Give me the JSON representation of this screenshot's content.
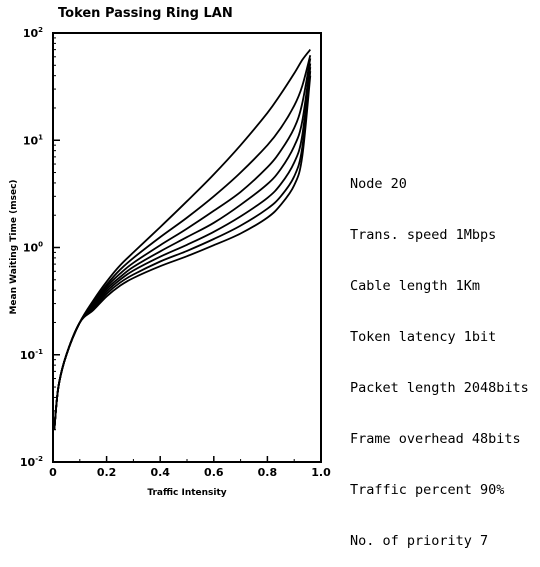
{
  "chart_data": {
    "type": "line",
    "title": "Token Passing Ring LAN",
    "xlabel": "Traffic Intensity",
    "ylabel": "Mean Waiting Time (msec)",
    "xlim": [
      0,
      1.0
    ],
    "ylim_log10": [
      -2,
      2
    ],
    "y_scale": "log",
    "x_ticks": [
      "0",
      "0.2",
      "0.4",
      "0.6",
      "0.8",
      "1.0"
    ],
    "y_ticks": [
      {
        "base": "10",
        "exp": "-2"
      },
      {
        "base": "10",
        "exp": "-1"
      },
      {
        "base": "10",
        "exp": "0"
      },
      {
        "base": "10",
        "exp": "1"
      },
      {
        "base": "10",
        "exp": "2"
      }
    ],
    "grid": false,
    "series": [
      {
        "x": [
          0.005,
          0.02,
          0.05,
          0.1,
          0.15,
          0.2,
          0.25,
          0.3,
          0.4,
          0.5,
          0.6,
          0.7,
          0.8,
          0.85,
          0.9,
          0.93,
          0.96
        ],
        "y": [
          0.02,
          0.05,
          0.1,
          0.2,
          0.32,
          0.48,
          0.68,
          0.9,
          1.55,
          2.7,
          4.8,
          9.0,
          18,
          27,
          42,
          56,
          70
        ]
      },
      {
        "x": [
          0.005,
          0.02,
          0.05,
          0.1,
          0.15,
          0.2,
          0.25,
          0.3,
          0.4,
          0.5,
          0.6,
          0.7,
          0.8,
          0.85,
          0.9,
          0.93,
          0.96
        ],
        "y": [
          0.02,
          0.05,
          0.1,
          0.2,
          0.31,
          0.45,
          0.62,
          0.8,
          1.25,
          1.9,
          3.0,
          5.0,
          9.0,
          13,
          21,
          32,
          62
        ]
      },
      {
        "x": [
          0.005,
          0.02,
          0.05,
          0.1,
          0.15,
          0.2,
          0.25,
          0.3,
          0.4,
          0.5,
          0.6,
          0.7,
          0.8,
          0.85,
          0.9,
          0.93,
          0.96
        ],
        "y": [
          0.02,
          0.05,
          0.1,
          0.2,
          0.3,
          0.43,
          0.57,
          0.72,
          1.05,
          1.5,
          2.2,
          3.3,
          5.6,
          8.0,
          13,
          22,
          58
        ]
      },
      {
        "x": [
          0.005,
          0.02,
          0.05,
          0.1,
          0.15,
          0.2,
          0.25,
          0.3,
          0.4,
          0.5,
          0.6,
          0.7,
          0.8,
          0.85,
          0.9,
          0.93,
          0.96
        ],
        "y": [
          0.02,
          0.05,
          0.1,
          0.2,
          0.29,
          0.41,
          0.53,
          0.66,
          0.92,
          1.25,
          1.7,
          2.5,
          3.9,
          5.4,
          8.8,
          15,
          52
        ]
      },
      {
        "x": [
          0.005,
          0.02,
          0.05,
          0.1,
          0.15,
          0.2,
          0.25,
          0.3,
          0.4,
          0.5,
          0.6,
          0.7,
          0.8,
          0.85,
          0.9,
          0.93,
          0.96
        ],
        "y": [
          0.02,
          0.05,
          0.1,
          0.2,
          0.28,
          0.39,
          0.5,
          0.61,
          0.82,
          1.06,
          1.4,
          1.95,
          2.9,
          3.9,
          6.2,
          11,
          48
        ]
      },
      {
        "x": [
          0.005,
          0.02,
          0.05,
          0.1,
          0.15,
          0.2,
          0.25,
          0.3,
          0.4,
          0.5,
          0.6,
          0.7,
          0.8,
          0.85,
          0.9,
          0.93,
          0.96
        ],
        "y": [
          0.02,
          0.05,
          0.1,
          0.2,
          0.27,
          0.37,
          0.47,
          0.56,
          0.74,
          0.93,
          1.2,
          1.6,
          2.3,
          3.0,
          4.6,
          8.5,
          44
        ]
      },
      {
        "x": [
          0.005,
          0.02,
          0.05,
          0.1,
          0.15,
          0.2,
          0.25,
          0.3,
          0.4,
          0.5,
          0.6,
          0.7,
          0.8,
          0.85,
          0.9,
          0.93,
          0.96
        ],
        "y": [
          0.02,
          0.05,
          0.1,
          0.2,
          0.26,
          0.35,
          0.44,
          0.52,
          0.67,
          0.83,
          1.05,
          1.35,
          1.9,
          2.5,
          3.8,
          7.0,
          40
        ]
      }
    ],
    "annotations": [
      "Node 20",
      "Trans. speed 1Mbps",
      "Cable length 1Km",
      "Token latency 1bit",
      "Packet length 2048bits",
      "Frame overhead 48bits",
      "Traffic percent 90%",
      "No. of priority 7"
    ]
  }
}
